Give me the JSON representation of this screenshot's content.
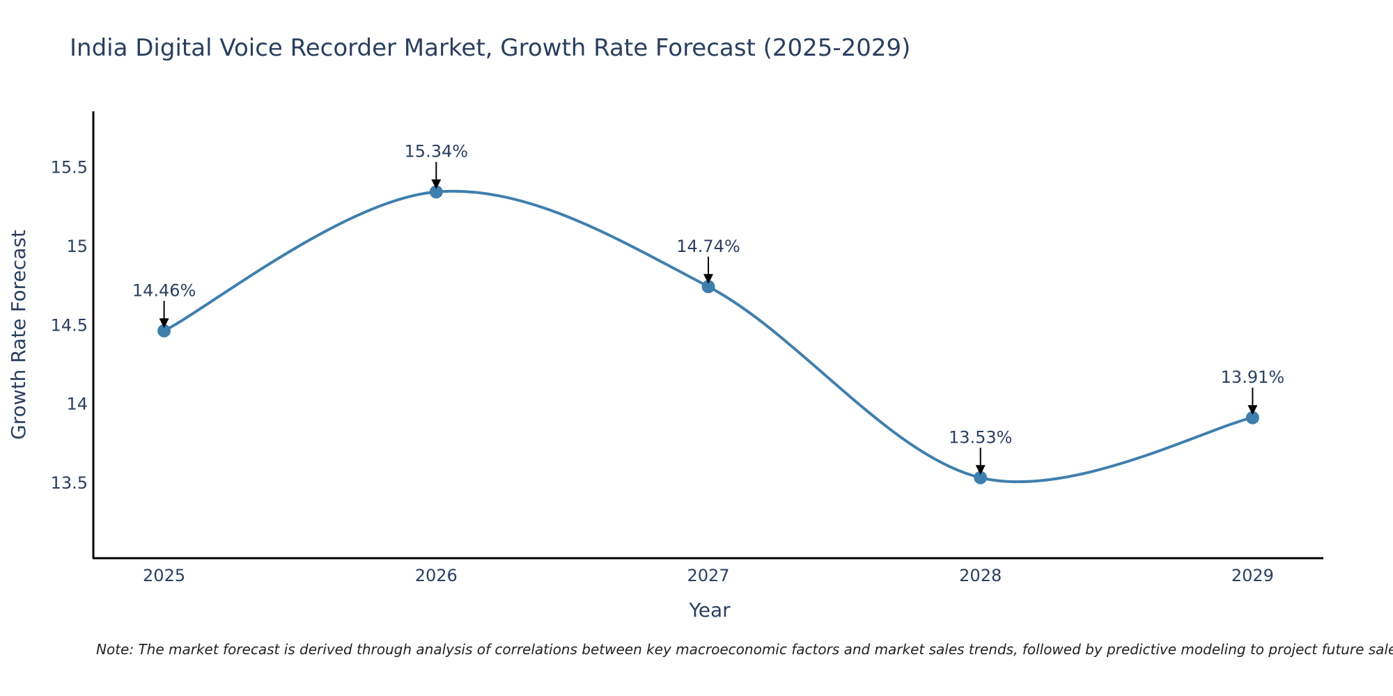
{
  "chart_data": {
    "type": "line",
    "title": "India Digital Voice Recorder Market, Growth Rate Forecast (2025-2029)",
    "xlabel": "Year",
    "ylabel": "Growth Rate Forecast",
    "categories": [
      "2025",
      "2026",
      "2027",
      "2028",
      "2029"
    ],
    "series": [
      {
        "name": "Growth Rate Forecast",
        "values": [
          14.46,
          15.34,
          14.74,
          13.53,
          13.91
        ]
      }
    ],
    "data_labels": [
      "14.46%",
      "15.34%",
      "14.74%",
      "13.53%",
      "13.91%"
    ],
    "y_ticks": [
      13.5,
      14,
      14.5,
      15,
      15.5
    ],
    "y_tick_labels": [
      "13.5",
      "14",
      "14.5",
      "15",
      "15.5"
    ],
    "ylim": [
      13.02,
      15.85
    ],
    "xlim": [
      -0.26,
      4.26
    ],
    "grid": false,
    "line_color": "#3f7fad",
    "marker_color": "#3f7fad",
    "note": "Note: The market forecast is derived through analysis of correlations between key macroeconomic factors and market sales trends, followed by predictive modeling to project future sales."
  }
}
